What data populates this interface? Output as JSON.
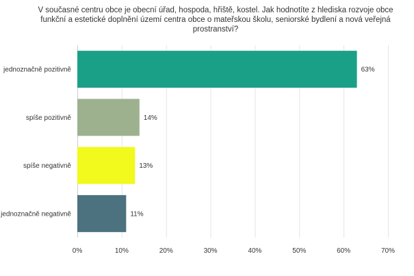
{
  "chart_data": {
    "type": "bar",
    "orientation": "horizontal",
    "title": "V současné centru obce je obecní úřad, hospoda, hřiště, kostel. Jak hodnotíte z hlediska rozvoje obce funkční a estetické doplnění území centra obce o mateřskou školu, seniorské bydlení a nová veřejná prostranství?",
    "categories": [
      "jednoznačně pozitivně",
      "spíše pozitivně",
      "spíše negativně",
      "jednoznačně negativně"
    ],
    "values": [
      63,
      14,
      13,
      11
    ],
    "value_labels": [
      "63%",
      "14%",
      "13%",
      "11%"
    ],
    "colors": [
      "#1ba088",
      "#9db18f",
      "#f1f91d",
      "#4b727e"
    ],
    "xlim": [
      0,
      70
    ],
    "x_ticks": [
      0,
      10,
      20,
      30,
      40,
      50,
      60,
      70
    ],
    "x_tick_labels": [
      "0%",
      "10%",
      "20%",
      "30%",
      "40%",
      "50%",
      "60%",
      "70%"
    ],
    "grid": "vertical",
    "legend": "none"
  }
}
